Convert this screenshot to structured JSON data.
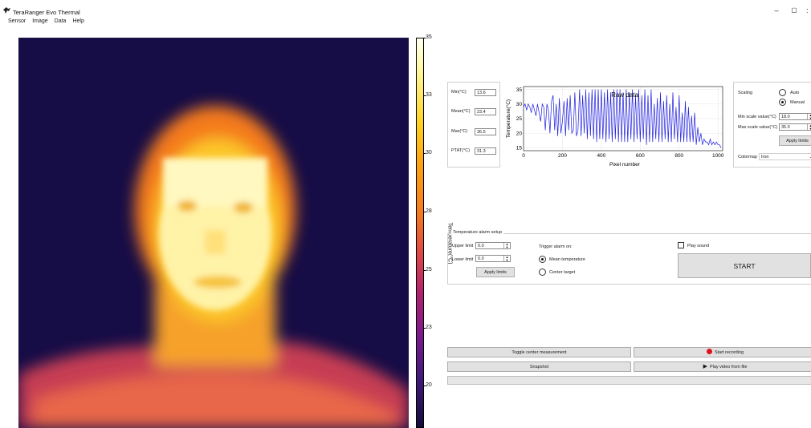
{
  "window": {
    "title": "TeraRanger Evo Thermal",
    "minimize": "–",
    "maximize": "▢",
    "close": ":"
  },
  "menu": [
    "Sensor",
    "Image",
    "Data",
    "Help"
  ],
  "colorbar": {
    "label": "Temperature(°C)",
    "ticks": [
      "35",
      "33",
      "30",
      "28",
      "25",
      "23",
      "20"
    ]
  },
  "stats": {
    "min_label": "Min(°C)",
    "min_value": "13.6",
    "mean_label": "Mean(°C)",
    "mean_value": "23.4",
    "max_label": "Max(°C)",
    "max_value": "36.5",
    "ptat_label": "PTAT(°C)",
    "ptat_value": "31.3"
  },
  "chart_data": {
    "type": "line",
    "title": "Raw data",
    "xlabel": "Pixel number",
    "ylabel": "Temperature(°C)",
    "xlim": [
      0,
      1024
    ],
    "ylim": [
      14,
      36
    ],
    "xticks": [
      0,
      200,
      400,
      600,
      800,
      1000
    ],
    "yticks": [
      15,
      20,
      25,
      30,
      35
    ],
    "grid": true,
    "color": "#1f1fe0",
    "series": [
      {
        "x": [
          0,
          8,
          16,
          24,
          32,
          40,
          48,
          56,
          64,
          72,
          80,
          88,
          96,
          104,
          112,
          120,
          128,
          136,
          144,
          152,
          160,
          168,
          176,
          184,
          192,
          200,
          208,
          216,
          224,
          232,
          240,
          248,
          256,
          264,
          272,
          280,
          288,
          296,
          304,
          312,
          320,
          328,
          336,
          344,
          352,
          360,
          368,
          376,
          384,
          392,
          400,
          408,
          416,
          424,
          432,
          440,
          448,
          456,
          464,
          472,
          480,
          488,
          496,
          504,
          512,
          520,
          528,
          536,
          544,
          552,
          560,
          568,
          576,
          584,
          592,
          600,
          608,
          616,
          624,
          632,
          640,
          648,
          656,
          664,
          672,
          680,
          688,
          696,
          704,
          712,
          720,
          728,
          736,
          744,
          752,
          760,
          768,
          776,
          784,
          792,
          800,
          808,
          816,
          824,
          832,
          840,
          848,
          856,
          864,
          872,
          880,
          888,
          896,
          904,
          912,
          920,
          928,
          936,
          944,
          952,
          960,
          968,
          976,
          984,
          992,
          1000,
          1008,
          1016
        ],
        "y": [
          29,
          30,
          28,
          30,
          29,
          27,
          30,
          28,
          26,
          30,
          27,
          24,
          30,
          29,
          21,
          30,
          28,
          20,
          31,
          33,
          21,
          30,
          19,
          32,
          20,
          24,
          31,
          19,
          32,
          21,
          33,
          20,
          21,
          34,
          19,
          21,
          35,
          19,
          33,
          20,
          35,
          18,
          34,
          19,
          35,
          18,
          35,
          17,
          35,
          18,
          35,
          18,
          34,
          17,
          35,
          18,
          34,
          17,
          35,
          18,
          35,
          17,
          35,
          17,
          34,
          17,
          35,
          17,
          34,
          18,
          35,
          17,
          33,
          18,
          35,
          17,
          33,
          18,
          35,
          16,
          33,
          17,
          35,
          17,
          30,
          18,
          32,
          17,
          34,
          17,
          31,
          18,
          33,
          17,
          30,
          17,
          34,
          18,
          29,
          17,
          33,
          17,
          27,
          17,
          31,
          17,
          29,
          17,
          26,
          17,
          27,
          16,
          22,
          17,
          20,
          16,
          18,
          17,
          17,
          16,
          18,
          16,
          17,
          16,
          17,
          16,
          16,
          15
        ]
      }
    ]
  },
  "scaling": {
    "label": "Scaling",
    "auto_label": "Auto",
    "manual_label": "Manual",
    "selected": "Manual",
    "min_label": "Min scale value(°C)",
    "min_value": "18.0",
    "max_label": "Max scale value(°C)",
    "max_value": "35.0",
    "apply_label": "Apply limits",
    "colormap_label": "Colormap",
    "colormap_value": "Iron"
  },
  "alarm": {
    "title": "Temperature alarm setup",
    "upper_label": "Upper limit",
    "upper_value": "0.0",
    "lower_label": "Lower limit",
    "lower_value": "0.0",
    "apply_label": "Apply limits",
    "trigger_label": "Trigger alarm on:",
    "mean_label": "Mean temperature",
    "center_label": "Center target",
    "trigger_selected": "Mean temperature",
    "sound_label": "Play sound",
    "start_label": "START"
  },
  "actions": {
    "toggle_center": "Toggle center measurement",
    "start_recording": "Start recording",
    "snapshot": "Snapshot",
    "play_video": "Play video from file",
    "record_color": "#e0101c"
  }
}
